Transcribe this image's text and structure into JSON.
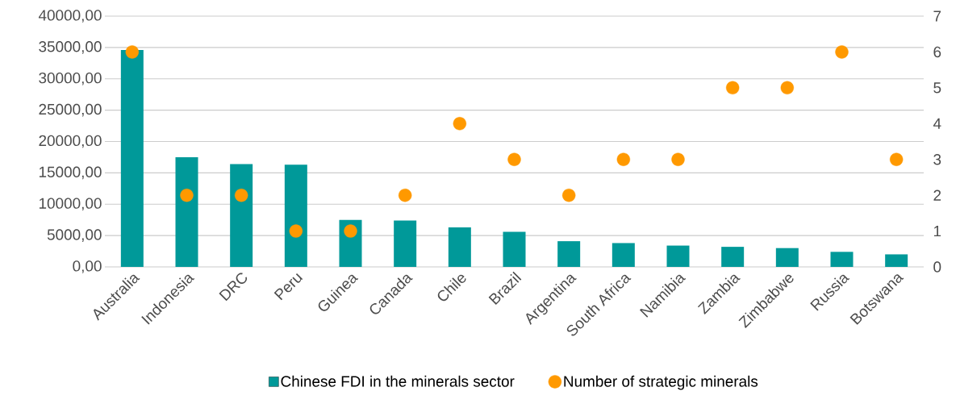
{
  "chart_data": {
    "type": "bar",
    "categories": [
      "Australia",
      "Indonesia",
      "DRC",
      "Peru",
      "Guinea",
      "Canada",
      "Chile",
      "Brazil",
      "Argentina",
      "South Africa",
      "Namibia",
      "Zambia",
      "Zimbabwe",
      "Russia",
      "Botswana"
    ],
    "series": [
      {
        "name": "Chinese FDI in the minerals sector",
        "color": "#009999",
        "values": [
          34600,
          17500,
          16400,
          16300,
          7500,
          7400,
          6300,
          5600,
          4100,
          3800,
          3400,
          3200,
          3000,
          2400,
          2000
        ]
      },
      {
        "name": "Number of strategic minerals",
        "type": "scatter",
        "axis": "y2",
        "color": "#ff9900",
        "values": [
          6,
          2,
          2,
          1,
          1,
          2,
          4,
          3,
          2,
          3,
          3,
          5,
          5,
          6,
          3
        ]
      }
    ],
    "ylim": [
      0,
      40000
    ],
    "yticks": [
      {
        "value": 0,
        "label": "0,00"
      },
      {
        "value": 5000,
        "label": "5000,00"
      },
      {
        "value": 10000,
        "label": "10000,00"
      },
      {
        "value": 15000,
        "label": "15000,00"
      },
      {
        "value": 20000,
        "label": "20000,00"
      },
      {
        "value": 25000,
        "label": "25000,00"
      },
      {
        "value": 30000,
        "label": "30000,00"
      },
      {
        "value": 35000,
        "label": "35000,00"
      },
      {
        "value": 40000,
        "label": "40000,00"
      }
    ],
    "y2lim": [
      0,
      7
    ],
    "y2ticks": [
      0,
      1,
      2,
      3,
      4,
      5,
      6,
      7
    ],
    "grid": "y",
    "marker": "circle",
    "legend": "bottom"
  }
}
